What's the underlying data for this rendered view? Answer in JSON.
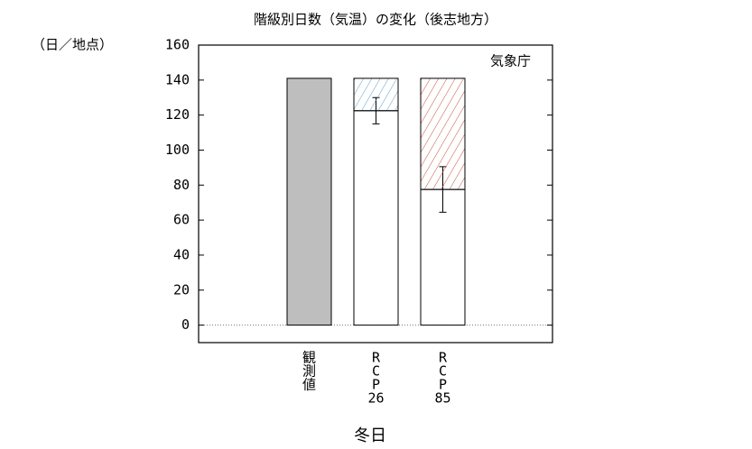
{
  "chart_data": {
    "type": "bar",
    "title": "階級別日数（気温）の変化（後志地方）",
    "y_unit": "（日／地点）",
    "source": "気象庁",
    "x_label": "冬日",
    "categories": [
      [
        "観",
        "測",
        "値"
      ],
      [
        "R",
        "C",
        "P",
        "26"
      ],
      [
        "R",
        "C",
        "P",
        "85"
      ]
    ],
    "series": [
      {
        "colors": [
          "#bebebe",
          "#ffffff",
          "#ffffff"
        ],
        "values": [
          141,
          122.5,
          77.5
        ],
        "errors": [
          null,
          7.5,
          13
        ]
      },
      {
        "colors": [
          null,
          "#5a9ec8",
          "#c8503c"
        ],
        "hatch": true,
        "values": [
          null,
          18.5,
          63.5
        ]
      }
    ],
    "ylim": [
      -10,
      160
    ],
    "yticks": [
      0,
      20,
      40,
      60,
      80,
      100,
      120,
      140,
      160
    ]
  }
}
